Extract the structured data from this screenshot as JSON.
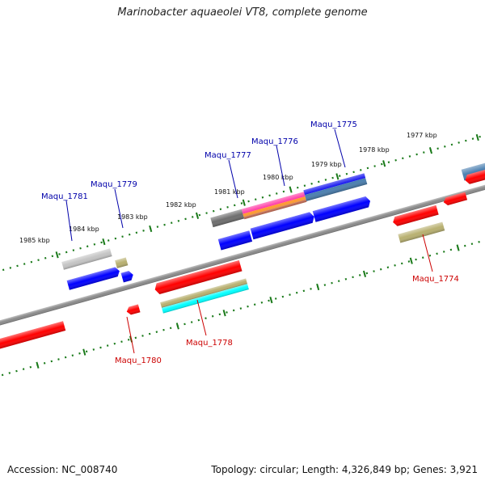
{
  "title": "Marinobacter aquaeolei VT8, complete genome",
  "footer": {
    "accession": "Accession: NC_008740",
    "summary": "Topology: circular; Length: 4,326,849 bp; Genes: 3,921"
  },
  "colors": {
    "axis": "#808080",
    "ticks": "#1a7a1a",
    "upper_label": "#0000aa",
    "lower_label": "#cc0000",
    "red": "#ff0000",
    "blue": "#0000ff",
    "gray_light": "#c8c8c8",
    "gray_dark": "#707070",
    "khaki": "#b8b070",
    "cyan": "#00ffff",
    "magenta": "#ff2fa0",
    "orange": "#ff9a30",
    "steel": "#4a7fb0"
  },
  "scale_labels": [
    {
      "text": "1985 kbp"
    },
    {
      "text": "1984 kbp"
    },
    {
      "text": "1983 kbp"
    },
    {
      "text": "1982 kbp"
    },
    {
      "text": "1981 kbp"
    },
    {
      "text": "1980 kbp"
    },
    {
      "text": "1979 kbp"
    },
    {
      "text": "1978 kbp"
    },
    {
      "text": "1977 kbp"
    }
  ],
  "upper_gene_labels": [
    {
      "text": "Maqu_1781"
    },
    {
      "text": "Maqu_1779"
    },
    {
      "text": "Maqu_1777"
    },
    {
      "text": "Maqu_1776"
    },
    {
      "text": "Maqu_1775"
    }
  ],
  "lower_gene_labels": [
    {
      "text": "Maqu_1780"
    },
    {
      "text": "Maqu_1778"
    },
    {
      "text": "Maqu_1774"
    }
  ]
}
